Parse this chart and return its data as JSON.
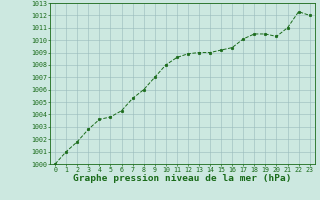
{
  "x": [
    0,
    1,
    2,
    3,
    4,
    5,
    6,
    7,
    8,
    9,
    10,
    11,
    12,
    13,
    14,
    15,
    16,
    17,
    18,
    19,
    20,
    21,
    22,
    23
  ],
  "y": [
    1000.0,
    1001.0,
    1001.8,
    1002.8,
    1003.6,
    1003.8,
    1004.3,
    1005.3,
    1006.0,
    1007.0,
    1008.0,
    1008.6,
    1008.9,
    1009.0,
    1009.0,
    1009.2,
    1009.4,
    1010.1,
    1010.5,
    1010.5,
    1010.3,
    1011.0,
    1012.3,
    1012.0
  ],
  "ylim": [
    1000,
    1013
  ],
  "xlim": [
    -0.5,
    23.5
  ],
  "yticks": [
    1000,
    1001,
    1002,
    1003,
    1004,
    1005,
    1006,
    1007,
    1008,
    1009,
    1010,
    1011,
    1012,
    1013
  ],
  "xticks": [
    0,
    1,
    2,
    3,
    4,
    5,
    6,
    7,
    8,
    9,
    10,
    11,
    12,
    13,
    14,
    15,
    16,
    17,
    18,
    19,
    20,
    21,
    22,
    23
  ],
  "line_color": "#1a6b1a",
  "marker_color": "#1a6b1a",
  "bg_color": "#cce8e0",
  "grid_color": "#99bbbb",
  "xlabel": "Graphe pression niveau de la mer (hPa)",
  "xlabel_color": "#1a6b1a",
  "tick_color": "#1a6b1a",
  "tick_fontsize": 4.8,
  "xlabel_fontsize": 6.8,
  "border_color": "#1a6b1a"
}
